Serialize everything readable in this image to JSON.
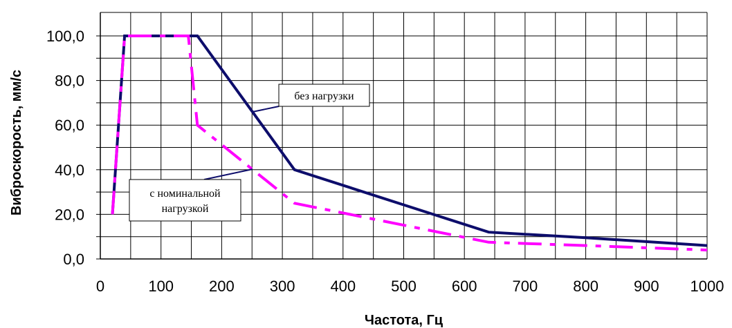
{
  "chart_data": {
    "type": "line",
    "xlabel": "Частота, Гц",
    "ylabel": "Виброскорость, мм/с",
    "xlim": [
      0,
      1000
    ],
    "ylim": [
      0,
      100
    ],
    "x_ticks": [
      "0",
      "100",
      "200",
      "300",
      "400",
      "500",
      "600",
      "700",
      "800",
      "900",
      "1000"
    ],
    "y_ticks": [
      "0,0",
      "20,0",
      "40,0",
      "60,0",
      "80,0",
      "100,0"
    ],
    "grid": true,
    "series": [
      {
        "name": "без нагрузки",
        "color": "#0d0d6b",
        "style": "solid",
        "points": [
          [
            20,
            20
          ],
          [
            40,
            100
          ],
          [
            160,
            100
          ],
          [
            320,
            40
          ],
          [
            640,
            12
          ],
          [
            800,
            9.5
          ],
          [
            1000,
            6
          ]
        ]
      },
      {
        "name": "с номинальной нагрузкой",
        "color": "#ff00ff",
        "style": "dash-dot",
        "points": [
          [
            20,
            20
          ],
          [
            40,
            100
          ],
          [
            145,
            100
          ],
          [
            160,
            60
          ],
          [
            320,
            25
          ],
          [
            640,
            7.5
          ],
          [
            800,
            6
          ],
          [
            1000,
            4
          ]
        ]
      }
    ],
    "annotations": [
      {
        "lines": [
          "без нагрузки"
        ],
        "target_series": 0
      },
      {
        "lines": [
          "с номинальной",
          "нагрузкой"
        ],
        "target_series": 1
      }
    ]
  }
}
